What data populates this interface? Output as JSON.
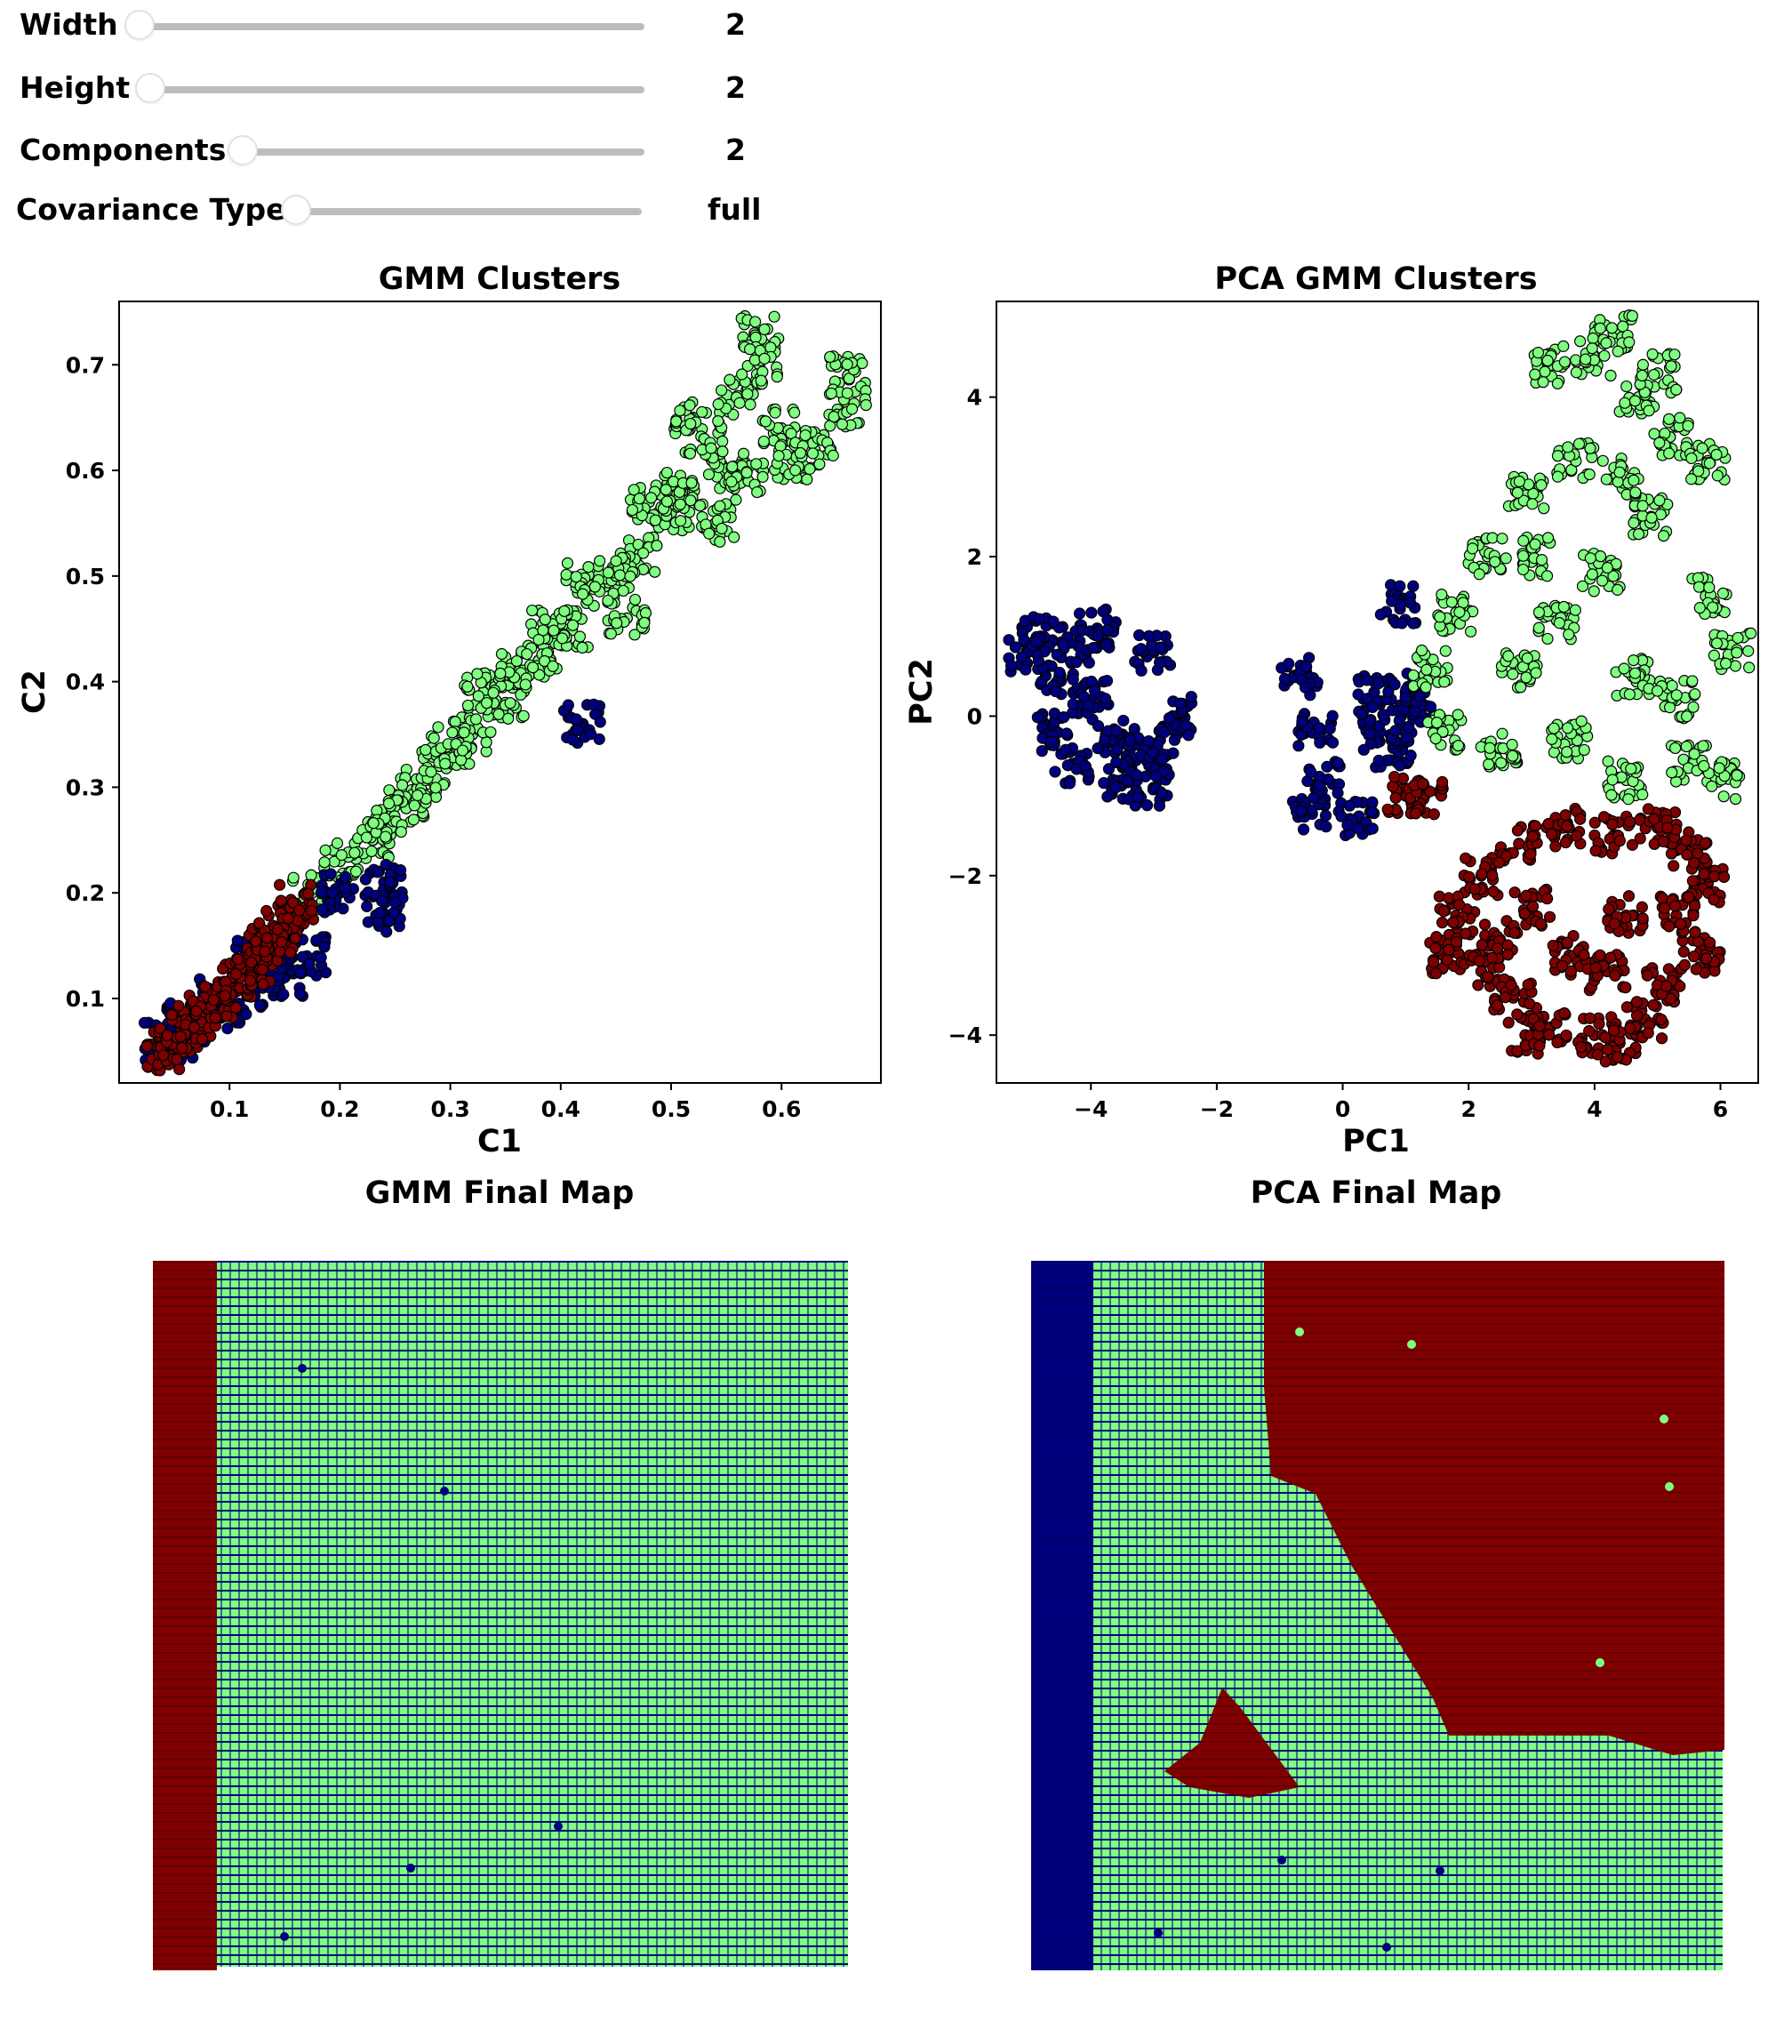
{
  "controls": [
    {
      "label": "Width",
      "value": "2"
    },
    {
      "label": "Height",
      "value": "2"
    },
    {
      "label": "Components",
      "value": "2"
    },
    {
      "label": "Covariance Type",
      "value": "full"
    }
  ],
  "colors": {
    "cluster_navy": "#00007f",
    "cluster_green": "#7fff7f",
    "cluster_red": "#7f0000",
    "marker_edge": "#000000"
  },
  "chart_data": [
    {
      "type": "scatter",
      "title": "GMM Clusters",
      "xlabel": "C1",
      "ylabel": "C2",
      "xlim": [
        0.0,
        0.69
      ],
      "ylim": [
        0.02,
        0.76
      ],
      "xticks": [
        0.1,
        0.2,
        0.3,
        0.4,
        0.5,
        0.6
      ],
      "xtick_labels": [
        "0.1",
        "0.2",
        "0.3",
        "0.4",
        "0.5",
        "0.6"
      ],
      "yticks": [
        0.1,
        0.2,
        0.3,
        0.4,
        0.5,
        0.6,
        0.7
      ],
      "ytick_labels": [
        "0.1",
        "0.2",
        "0.3",
        "0.4",
        "0.5",
        "0.6",
        "0.7"
      ],
      "series": [
        {
          "color": "#7fff7f",
          "description_range": {
            "c1": [
              0.15,
              0.66
            ],
            "c2": [
              0.2,
              0.73
            ]
          },
          "points": [
            [
              0.58,
              0.73
            ],
            [
              0.66,
              0.69
            ],
            [
              0.66,
              0.66
            ],
            [
              0.63,
              0.62
            ],
            [
              0.6,
              0.64
            ],
            [
              0.56,
              0.67
            ],
            [
              0.58,
              0.7
            ],
            [
              0.52,
              0.65
            ],
            [
              0.55,
              0.6
            ],
            [
              0.5,
              0.56
            ],
            [
              0.47,
              0.52
            ],
            [
              0.44,
              0.49
            ],
            [
              0.41,
              0.45
            ],
            [
              0.38,
              0.42
            ],
            [
              0.35,
              0.38
            ],
            [
              0.32,
              0.35
            ],
            [
              0.29,
              0.32
            ],
            [
              0.26,
              0.28
            ],
            [
              0.23,
              0.25
            ],
            [
              0.2,
              0.23
            ],
            [
              0.17,
              0.2
            ],
            [
              0.45,
              0.5
            ],
            [
              0.48,
              0.57
            ],
            [
              0.53,
              0.63
            ],
            [
              0.39,
              0.45
            ],
            [
              0.36,
              0.41
            ],
            [
              0.42,
              0.5
            ],
            [
              0.33,
              0.39
            ],
            [
              0.3,
              0.34
            ],
            [
              0.27,
              0.3
            ],
            [
              0.24,
              0.27
            ],
            [
              0.57,
              0.59
            ],
            [
              0.61,
              0.61
            ],
            [
              0.54,
              0.55
            ],
            [
              0.51,
              0.58
            ],
            [
              0.46,
              0.46
            ]
          ]
        },
        {
          "color": "#00007f",
          "points": [
            [
              0.42,
              0.36
            ],
            [
              0.24,
              0.21
            ],
            [
              0.24,
              0.18
            ],
            [
              0.17,
              0.14
            ],
            [
              0.13,
              0.11
            ],
            [
              0.1,
              0.09
            ],
            [
              0.07,
              0.07
            ],
            [
              0.05,
              0.06
            ],
            [
              0.15,
              0.12
            ],
            [
              0.12,
              0.14
            ],
            [
              0.09,
              0.1
            ],
            [
              0.06,
              0.08
            ],
            [
              0.04,
              0.06
            ],
            [
              0.2,
              0.2
            ],
            [
              0.14,
              0.15
            ]
          ]
        },
        {
          "color": "#7f0000",
          "points": [
            [
              0.04,
              0.05
            ],
            [
              0.05,
              0.06
            ],
            [
              0.07,
              0.08
            ],
            [
              0.09,
              0.1
            ],
            [
              0.11,
              0.12
            ],
            [
              0.13,
              0.15
            ],
            [
              0.15,
              0.17
            ],
            [
              0.16,
              0.19
            ],
            [
              0.06,
              0.07
            ],
            [
              0.08,
              0.09
            ],
            [
              0.12,
              0.13
            ],
            [
              0.14,
              0.16
            ]
          ]
        }
      ]
    },
    {
      "type": "scatter",
      "title": "PCA GMM Clusters",
      "xlabel": "PC1",
      "ylabel": "PC2",
      "xlim": [
        -5.5,
        6.6
      ],
      "ylim": [
        -4.6,
        5.2
      ],
      "xticks": [
        -4,
        -2,
        0,
        2,
        4,
        6
      ],
      "xtick_labels": [
        "−4",
        "−2",
        "0",
        "2",
        "4",
        "6"
      ],
      "yticks": [
        -4,
        -2,
        0,
        2,
        4
      ],
      "ytick_labels": [
        "−4",
        "−2",
        "0",
        "2",
        "4"
      ],
      "series": [
        {
          "color": "#00007f",
          "points": [
            [
              -4.2,
              0.9
            ],
            [
              -4.8,
              1.0
            ],
            [
              -4.5,
              0.5
            ],
            [
              -4.0,
              0.2
            ],
            [
              -3.6,
              -0.3
            ],
            [
              -3.2,
              -0.5
            ],
            [
              -2.9,
              -0.3
            ],
            [
              -2.7,
              0.0
            ],
            [
              -3.0,
              -0.9
            ],
            [
              -3.5,
              -0.8
            ],
            [
              -4.3,
              -0.6
            ],
            [
              -4.6,
              -0.2
            ],
            [
              -5.0,
              0.8
            ],
            [
              -3.9,
              1.1
            ],
            [
              -3.0,
              0.8
            ],
            [
              -0.4,
              -0.2
            ],
            [
              -0.5,
              -1.2
            ],
            [
              -0.3,
              -0.8
            ],
            [
              -0.7,
              0.5
            ],
            [
              0.9,
              1.4
            ],
            [
              0.5,
              0.3
            ],
            [
              0.8,
              -0.4
            ],
            [
              1.2,
              0.1
            ],
            [
              0.2,
              -1.3
            ],
            [
              0.6,
              -0.2
            ],
            [
              1.0,
              0.3
            ]
          ]
        },
        {
          "color": "#7fff7f",
          "points": [
            [
              4.3,
              4.8
            ],
            [
              4.0,
              4.5
            ],
            [
              3.3,
              4.4
            ],
            [
              4.7,
              4.0
            ],
            [
              5.2,
              3.5
            ],
            [
              5.8,
              3.2
            ],
            [
              3.7,
              3.2
            ],
            [
              2.9,
              2.8
            ],
            [
              2.3,
              2.0
            ],
            [
              1.8,
              1.3
            ],
            [
              1.4,
              0.6
            ],
            [
              1.6,
              -0.2
            ],
            [
              2.5,
              -0.4
            ],
            [
              3.6,
              -0.3
            ],
            [
              4.5,
              -0.8
            ],
            [
              5.5,
              -0.6
            ],
            [
              6.0,
              -0.8
            ],
            [
              6.2,
              0.8
            ],
            [
              5.8,
              1.5
            ],
            [
              4.9,
              2.5
            ],
            [
              4.1,
              1.8
            ],
            [
              3.4,
              1.2
            ],
            [
              2.8,
              0.6
            ],
            [
              4.6,
              0.5
            ],
            [
              5.3,
              0.2
            ],
            [
              3.0,
              2.0
            ],
            [
              4.4,
              3.0
            ],
            [
              5.0,
              4.3
            ]
          ]
        },
        {
          "color": "#7f0000",
          "points": [
            [
              2.9,
              -4.0
            ],
            [
              3.3,
              -3.9
            ],
            [
              4.0,
              -4.0
            ],
            [
              4.4,
              -4.1
            ],
            [
              4.8,
              -3.8
            ],
            [
              5.1,
              -3.4
            ],
            [
              5.7,
              -3.0
            ],
            [
              5.8,
              -2.1
            ],
            [
              5.5,
              -1.7
            ],
            [
              5.0,
              -1.4
            ],
            [
              4.3,
              -1.5
            ],
            [
              3.5,
              -1.4
            ],
            [
              2.8,
              -1.6
            ],
            [
              2.2,
              -2.0
            ],
            [
              1.8,
              -2.5
            ],
            [
              1.6,
              -3.0
            ],
            [
              2.2,
              -3.2
            ],
            [
              2.7,
              -3.5
            ],
            [
              3.6,
              -3.0
            ],
            [
              4.5,
              -2.5
            ],
            [
              3.0,
              -2.4
            ],
            [
              4.2,
              -3.2
            ],
            [
              5.3,
              -2.5
            ],
            [
              2.5,
              -2.8
            ],
            [
              1.3,
              -1.0
            ],
            [
              1.0,
              -1.0
            ]
          ]
        }
      ]
    },
    {
      "type": "heatmap",
      "title": "GMM Final Map",
      "regions": [
        {
          "color": "#7f0000",
          "description": "left vertical band",
          "x_fraction": [
            0.0,
            0.09
          ]
        },
        {
          "color": "#7fff7f",
          "description": "rest of grid with dense navy grid lines",
          "x_fraction": [
            0.09,
            1.0
          ]
        }
      ]
    },
    {
      "type": "heatmap",
      "title": "PCA Final Map",
      "regions": [
        {
          "color": "#00007f",
          "description": "left vertical band",
          "x_fraction": [
            0.0,
            0.09
          ]
        },
        {
          "color": "#7fff7f",
          "description": "main field"
        },
        {
          "color": "#7f0000",
          "description": "upper-right region and small lower-left triangle"
        }
      ]
    }
  ]
}
